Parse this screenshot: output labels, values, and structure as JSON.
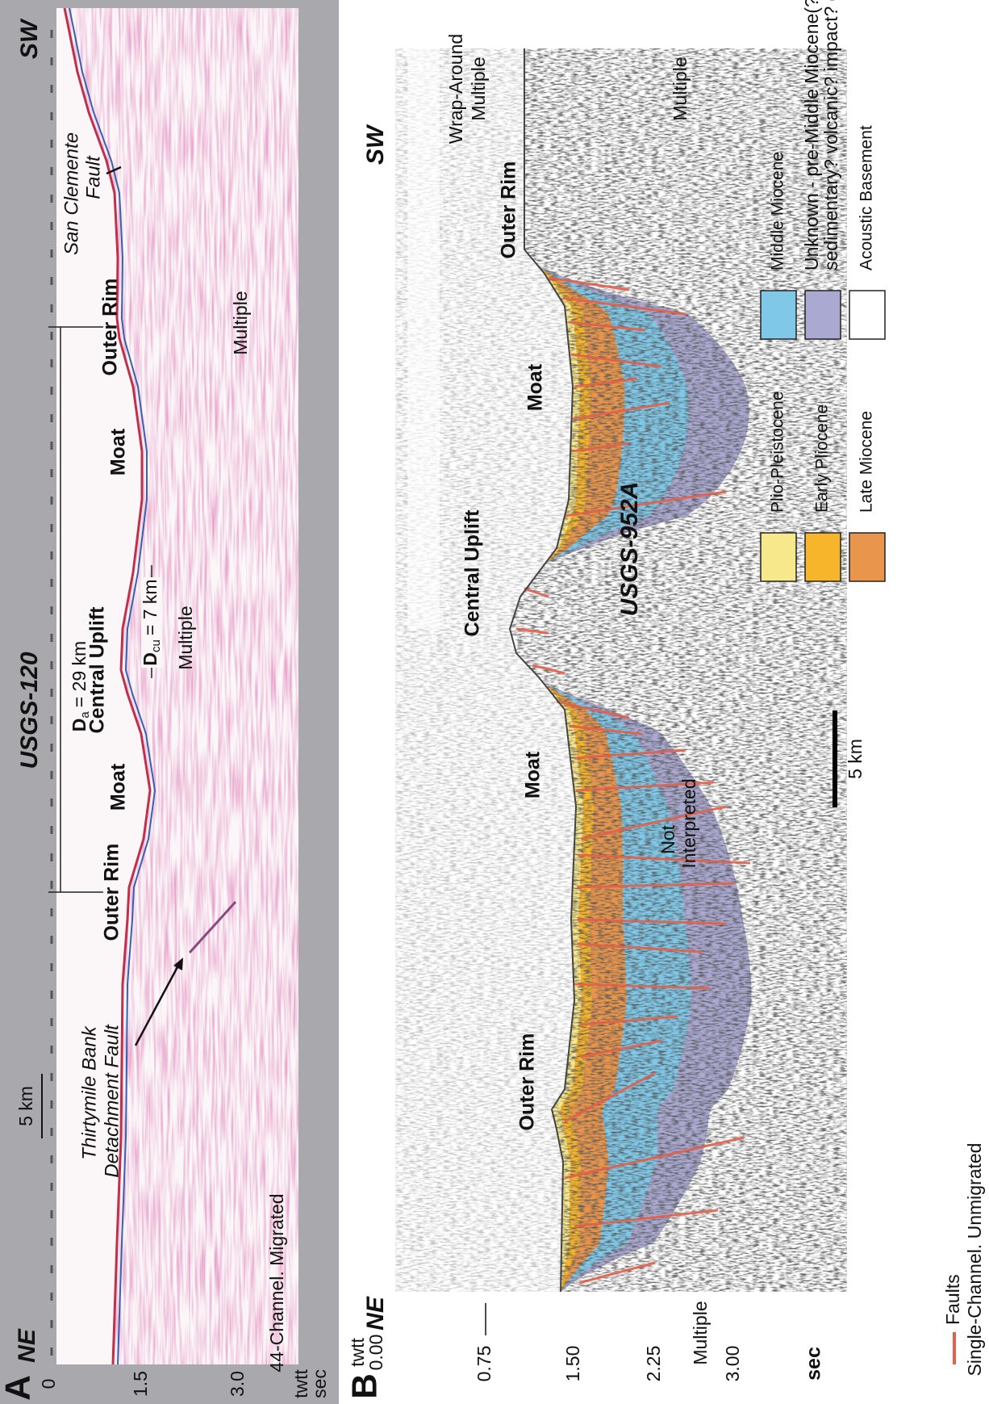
{
  "panel_a": {
    "label": "A",
    "title": "USGS-120",
    "left_direction": "NE",
    "right_direction": "SW",
    "scale_bar": "5 km",
    "axis_ticks": [
      "0",
      "1.5",
      "3.0"
    ],
    "axis_unit": [
      "twtt",
      "sec"
    ],
    "processing": "44-Channel. Migrated",
    "annotations": [
      "Thirtymile Bank",
      "Detachment Fault",
      "Outer Rim",
      "Moat",
      "Central Uplift",
      "Multiple",
      "Moat",
      "Outer Rim",
      "Multiple",
      "San Clemente",
      "Fault"
    ],
    "diameter_a": {
      "symbol": "D",
      "subscript": "a",
      "text": "= 29 km"
    },
    "diameter_cu": {
      "symbol": "D",
      "subscript": "cu",
      "text": "= 7 km"
    }
  },
  "panel_b": {
    "label": "B",
    "title": "USGS-952A",
    "left_direction": "NE",
    "right_direction": "SW",
    "axis_unit_top": "twtt",
    "axis_ticks": [
      "0.00",
      "0.75",
      "1.50",
      "2.25",
      "3.00"
    ],
    "axis_unit": "sec",
    "annotations": [
      "Multiple",
      "Outer Rim",
      "Moat",
      "Not",
      "Interpreted",
      "Central Uplift",
      "Moat",
      "Outer Rim",
      "Wrap-Around",
      "Multiple",
      "Multiple"
    ],
    "scale_bar": "5 km",
    "faults_label": "Faults",
    "processing": "Single-Channel. Unmigrated"
  },
  "legend": [
    {
      "lines": [
        "Plio-Pleistocene"
      ],
      "color": "#f8e88c"
    },
    {
      "lines": [
        "Early Pliocene"
      ],
      "color": "#f7b52c"
    },
    {
      "lines": [
        "Late Miocene"
      ],
      "color": "#e9964c"
    },
    {
      "lines": [
        "Middle Miocene"
      ],
      "color": "#7fc8e8"
    },
    {
      "lines": [
        "Unknown - pre-Middle Miocene(?)",
        "sedimentary? volcanic? impact? deposits"
      ],
      "color": "#aaa9d2"
    },
    {
      "lines": [
        "Acoustic Basement"
      ],
      "color": "#ffffff"
    }
  ]
}
